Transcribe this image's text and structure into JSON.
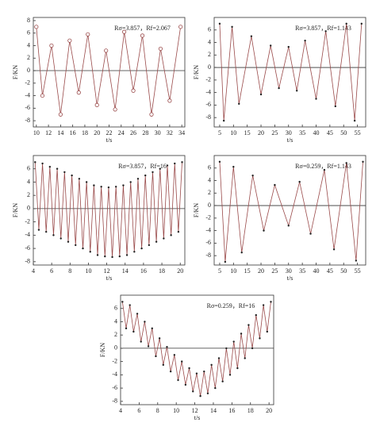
{
  "chart_data": [
    {
      "type": "line",
      "annotation": "Rσ=3.857，Rf=2.067",
      "xlabel": "t/s",
      "ylabel": "F/KN",
      "marker": "open-circle",
      "zero_line": true,
      "xlim": [
        9.5,
        34.5
      ],
      "xticks": [
        10,
        12,
        14,
        16,
        18,
        20,
        22,
        24,
        26,
        28,
        30,
        32,
        34
      ],
      "ylim": [
        -9,
        8.5
      ],
      "yticks": [
        -8,
        -6,
        -4,
        -2,
        0,
        2,
        4,
        6,
        8
      ],
      "x": [
        10,
        11,
        12.5,
        14,
        15.5,
        17,
        18.5,
        20,
        21.5,
        23,
        24.5,
        26,
        27.5,
        29,
        30.5,
        32,
        33.8
      ],
      "series": [
        {
          "color": "#9a4a4a",
          "values": [
            7,
            -4,
            4,
            -7,
            4.8,
            -3.5,
            5.8,
            -5.5,
            3.2,
            -6.2,
            6.2,
            -3.2,
            5.6,
            -7,
            3.5,
            -4.8,
            7
          ]
        }
      ]
    },
    {
      "type": "line",
      "annotation": "Rσ=3.857，Rf=1.143",
      "xlabel": "t/s",
      "ylabel": "F/KN",
      "marker": "dot",
      "zero_line": true,
      "xlim": [
        3,
        58
      ],
      "xticks": [
        5,
        10,
        15,
        20,
        25,
        30,
        35,
        40,
        45,
        50,
        55
      ],
      "ylim": [
        -9.5,
        8
      ],
      "yticks": [
        -8,
        -6,
        -4,
        -2,
        0,
        2,
        4,
        6
      ],
      "x": [
        5,
        6.5,
        9.5,
        12,
        16.5,
        20,
        23.5,
        26.5,
        30,
        33,
        36,
        40,
        43.5,
        47,
        51,
        54,
        56.5
      ],
      "series": [
        {
          "color": "#9a4a4a",
          "values": [
            7,
            -8.5,
            6.5,
            -5.8,
            5,
            -4.3,
            3.5,
            -3.3,
            3.3,
            -3.7,
            4.3,
            -5,
            5.8,
            -6.2,
            7,
            -8.5,
            7
          ]
        }
      ]
    },
    {
      "type": "line",
      "annotation": "Rσ=3.857，Rf=16",
      "xlabel": "t/s",
      "ylabel": "F/KN",
      "marker": "dot",
      "zero_line": true,
      "xlim": [
        4,
        20.5
      ],
      "xticks": [
        4,
        6,
        8,
        10,
        12,
        14,
        16,
        18,
        20
      ],
      "ylim": [
        -8.5,
        8
      ],
      "yticks": [
        -8,
        -6,
        -4,
        -2,
        0,
        2,
        4,
        6
      ],
      "x": [
        4.2,
        4.6,
        5.0,
        5.4,
        5.8,
        6.2,
        6.6,
        7.0,
        7.4,
        7.8,
        8.2,
        8.6,
        9.0,
        9.4,
        9.8,
        10.2,
        10.6,
        11.0,
        11.4,
        11.8,
        12.2,
        12.6,
        13.0,
        13.4,
        13.8,
        14.2,
        14.6,
        15.0,
        15.4,
        15.8,
        16.2,
        16.6,
        17.0,
        17.4,
        17.8,
        18.2,
        18.6,
        19.0,
        19.4,
        19.8,
        20.2
      ],
      "series": [
        {
          "color": "#9a4a4a",
          "values": [
            7,
            -3.2,
            6.8,
            -3.5,
            6.3,
            -4,
            6,
            -4.5,
            5.5,
            -5,
            5,
            -5.5,
            4.5,
            -6,
            4,
            -6.5,
            3.5,
            -7,
            3.3,
            -7.2,
            3.2,
            -7.3,
            3.3,
            -7.2,
            3.5,
            -7,
            4,
            -6.5,
            4.5,
            -6,
            5,
            -5.5,
            5.5,
            -5,
            6,
            -4.5,
            6.5,
            -4,
            6.8,
            -3.5,
            7
          ]
        }
      ]
    },
    {
      "type": "line",
      "annotation": "Rσ=0.259，Rf=1.143",
      "xlabel": "t/s",
      "ylabel": "F/KN",
      "marker": "dot",
      "zero_line": true,
      "xlim": [
        3,
        58
      ],
      "xticks": [
        5,
        10,
        15,
        20,
        25,
        30,
        35,
        40,
        45,
        50,
        55
      ],
      "ylim": [
        -9.5,
        8
      ],
      "yticks": [
        -8,
        -6,
        -4,
        -2,
        0,
        2,
        4,
        6
      ],
      "x": [
        5,
        7,
        10,
        13,
        17,
        21,
        25,
        30,
        34,
        38,
        43,
        46.5,
        51,
        54.5,
        57
      ],
      "series": [
        {
          "color": "#9a4a4a",
          "values": [
            7,
            -9,
            6.2,
            -7.5,
            4.8,
            -4,
            3.3,
            -3.2,
            3.8,
            -4.5,
            5.7,
            -7,
            6.8,
            -8.8,
            7
          ]
        }
      ]
    },
    {
      "type": "line",
      "annotation": "Rσ=0.259，Rf=16",
      "xlabel": "t/s",
      "ylabel": "F/KN",
      "marker": "dot",
      "zero_line": true,
      "xlim": [
        4,
        20.5
      ],
      "xticks": [
        4,
        6,
        8,
        10,
        12,
        14,
        16,
        18,
        20
      ],
      "ylim": [
        -8.5,
        8
      ],
      "yticks": [
        -8,
        -6,
        -4,
        -2,
        0,
        2,
        4,
        6
      ],
      "x": [
        4.2,
        4.6,
        5.0,
        5.4,
        5.8,
        6.2,
        6.6,
        7.0,
        7.4,
        7.8,
        8.2,
        8.6,
        9.0,
        9.4,
        9.8,
        10.2,
        10.6,
        11.0,
        11.4,
        11.8,
        12.2,
        12.6,
        13.0,
        13.4,
        13.8,
        14.2,
        14.6,
        15.0,
        15.4,
        15.8,
        16.2,
        16.6,
        17.0,
        17.4,
        17.8,
        18.2,
        18.6,
        19.0,
        19.4,
        19.8,
        20.2
      ],
      "series": [
        {
          "color": "#9a4a4a",
          "values": [
            7,
            3,
            6.5,
            2.5,
            5.2,
            1,
            4,
            0.3,
            3,
            -1.2,
            1.5,
            -2.5,
            0.2,
            -3.5,
            -1,
            -4.8,
            -2,
            -5.5,
            -3,
            -6.5,
            -3.8,
            -7.2,
            -3.5,
            -6.8,
            -2.5,
            -6,
            -1.5,
            -5,
            0,
            -4,
            1,
            -3,
            2.2,
            -1.5,
            3.5,
            0,
            5,
            1.5,
            6.5,
            2.5,
            7
          ]
        }
      ]
    }
  ]
}
